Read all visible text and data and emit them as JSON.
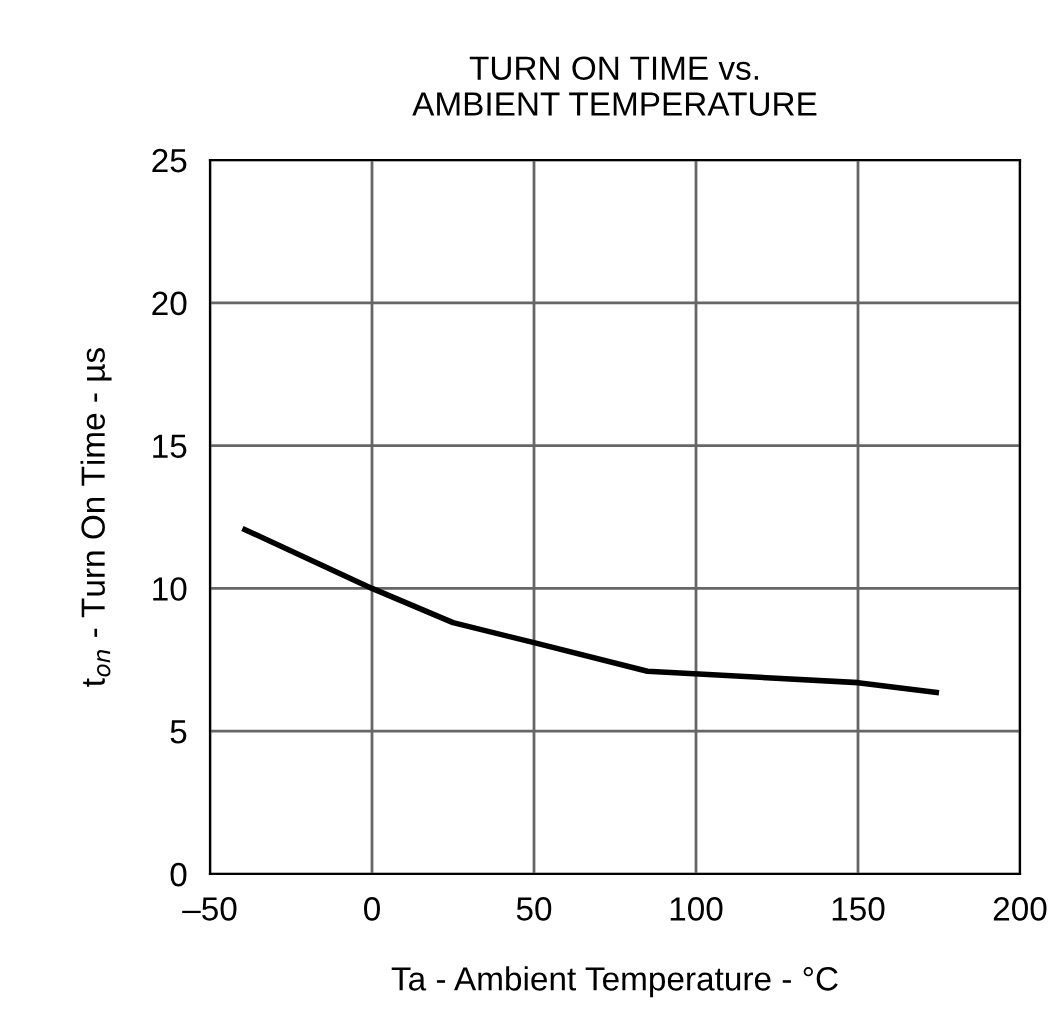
{
  "chart_data": {
    "type": "line",
    "title": "TURN ON TIME vs.\nAMBIENT TEMPERATURE",
    "xlabel": "Ta - Ambient Temperature - °C",
    "ylabel": "t$_{on}$ - Turn On Time - µs",
    "series": [
      {
        "color": "#000000",
        "x": [
          -40,
          0,
          25,
          50,
          85,
          150,
          175
        ],
        "values": [
          12.1,
          10.0,
          8.8,
          8.1,
          7.1,
          6.7,
          6.35
        ]
      }
    ],
    "xlim": [
      -50,
      200
    ],
    "xticks": [
      {
        "value": -50,
        "label": "–50"
      },
      0,
      50,
      100,
      150,
      200
    ],
    "ylim": [
      0,
      25
    ],
    "yticks": [
      0,
      5,
      10,
      15,
      20,
      25
    ],
    "grid": true
  }
}
